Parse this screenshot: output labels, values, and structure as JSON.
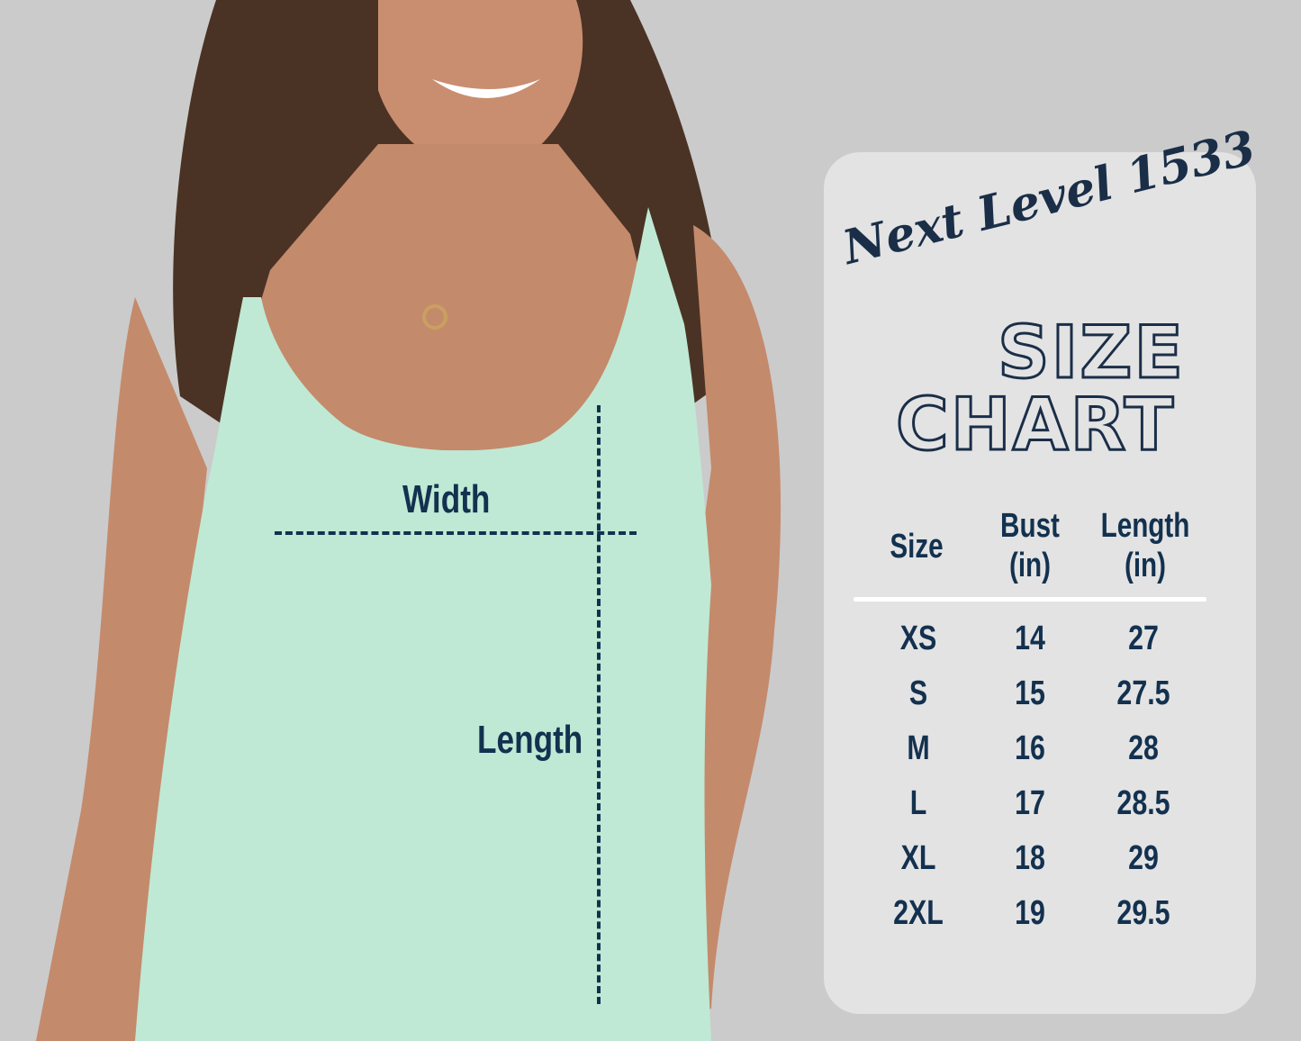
{
  "product_title": "Next Level 1533",
  "heading_line1": "SIZE",
  "heading_line2": "CHART",
  "measure_labels": {
    "width": "Width",
    "length": "Length"
  },
  "table": {
    "headers": [
      {
        "line1": "Size",
        "line2": ""
      },
      {
        "line1": "Bust",
        "line2": "(in)"
      },
      {
        "line1": "Length",
        "line2": "(in)"
      }
    ],
    "rows": [
      [
        "XS",
        "14",
        "27"
      ],
      [
        "S",
        "15",
        "27.5"
      ],
      [
        "M",
        "16",
        "28"
      ],
      [
        "L",
        "17",
        "28.5"
      ],
      [
        "XL",
        "18",
        "29"
      ],
      [
        "2XL",
        "19",
        "29.5"
      ]
    ]
  },
  "colors": {
    "navy": "#13314f",
    "tank": "#bfe9d4",
    "background": "#cbcbcb",
    "panel": "#e3e3e3"
  }
}
